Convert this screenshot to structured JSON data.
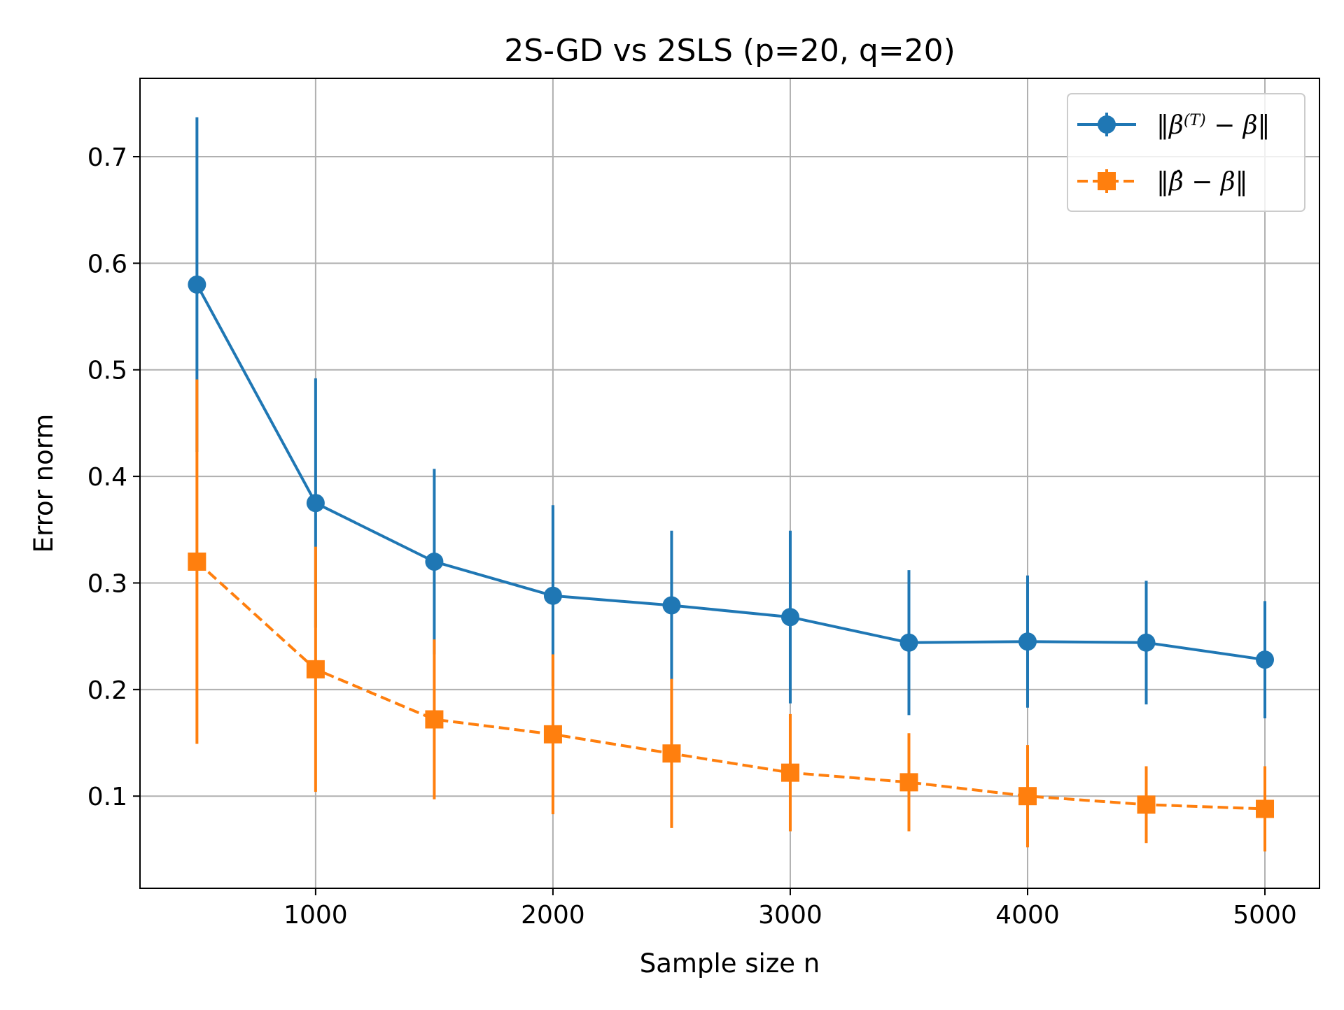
{
  "chart_data": {
    "type": "line",
    "title": "2S-GD vs 2SLS (p=20, q=20)",
    "xlabel": "Sample size n",
    "ylabel": "Error norm",
    "xlim": [
      260,
      5230
    ],
    "ylim": [
      0.0135,
      0.7735
    ],
    "x": [
      500,
      1000,
      1500,
      2000,
      2500,
      3000,
      3500,
      4000,
      4500,
      5000
    ],
    "x_ticks": [
      1000,
      2000,
      3000,
      4000,
      5000
    ],
    "x_tick_labels": [
      "1000",
      "2000",
      "3000",
      "4000",
      "5000"
    ],
    "y_ticks": [
      0.1,
      0.2,
      0.3,
      0.4,
      0.5,
      0.6,
      0.7
    ],
    "y_tick_labels": [
      "0.1",
      "0.2",
      "0.3",
      "0.4",
      "0.5",
      "0.6",
      "0.7"
    ],
    "grid": true,
    "legend_position": "top-right",
    "series": [
      {
        "name": "‖β^(T) − β‖",
        "legend": {
          "pre": "‖",
          "sym": "β",
          "sup": "(T)",
          "post": " − β‖"
        },
        "color": "#1f77b4",
        "marker": "circle",
        "linestyle": "solid",
        "values": [
          0.58,
          0.375,
          0.32,
          0.288,
          0.279,
          0.268,
          0.244,
          0.245,
          0.244,
          0.228
        ],
        "errors": [
          0.157,
          0.117,
          0.087,
          0.085,
          0.07,
          0.081,
          0.068,
          0.062,
          0.058,
          0.055
        ]
      },
      {
        "name": "‖β̂ − β‖",
        "legend": {
          "pre": "‖",
          "sym": "β̂",
          "sup": "",
          "post": " − β‖"
        },
        "color": "#ff7f0e",
        "marker": "square",
        "linestyle": "dashed",
        "values": [
          0.32,
          0.219,
          0.172,
          0.158,
          0.14,
          0.122,
          0.113,
          0.1,
          0.092,
          0.088
        ],
        "errors": [
          0.171,
          0.115,
          0.075,
          0.075,
          0.07,
          0.055,
          0.046,
          0.048,
          0.036,
          0.04
        ]
      }
    ]
  }
}
